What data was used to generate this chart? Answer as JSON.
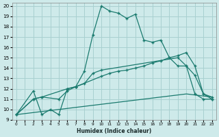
{
  "xlabel": "Humidex (Indice chaleur)",
  "bg_color": "#ceeaea",
  "grid_color": "#a8d0d0",
  "line_color": "#1a7a6e",
  "xlim": [
    -0.5,
    23.5
  ],
  "ylim": [
    9,
    20.3
  ],
  "xticks": [
    0,
    1,
    2,
    3,
    4,
    5,
    6,
    7,
    8,
    9,
    10,
    11,
    12,
    13,
    14,
    15,
    16,
    17,
    18,
    19,
    20,
    21,
    22,
    23
  ],
  "yticks": [
    9,
    10,
    11,
    12,
    13,
    14,
    15,
    16,
    17,
    18,
    19,
    20
  ],
  "series1_x": [
    0,
    2,
    3,
    4,
    5,
    6,
    7,
    8,
    9,
    10,
    11,
    12,
    13,
    14,
    15,
    16,
    17,
    18,
    19,
    20,
    21,
    22,
    23
  ],
  "series1_y": [
    9.5,
    11.8,
    9.5,
    10.0,
    9.5,
    12.0,
    12.2,
    13.7,
    17.2,
    20.0,
    19.5,
    19.3,
    18.8,
    19.2,
    16.7,
    16.5,
    16.7,
    15.0,
    14.2,
    14.2,
    13.3,
    11.5,
    11.0
  ],
  "series2_x": [
    0,
    2,
    3,
    6,
    7,
    8,
    9,
    10,
    19,
    20,
    21,
    22,
    23
  ],
  "series2_y": [
    9.5,
    11.0,
    11.2,
    12.0,
    12.2,
    12.5,
    13.5,
    13.8,
    15.0,
    14.2,
    11.5,
    11.0,
    11.0
  ],
  "series3_x": [
    0,
    2,
    3,
    5,
    6,
    7,
    10,
    11,
    12,
    13,
    14,
    15,
    16,
    17,
    18,
    19,
    20,
    21,
    22,
    23
  ],
  "series3_y": [
    9.5,
    11.0,
    11.2,
    11.0,
    11.8,
    12.2,
    13.2,
    13.5,
    13.7,
    13.8,
    14.0,
    14.2,
    14.5,
    14.7,
    15.0,
    15.2,
    15.5,
    14.2,
    11.5,
    11.2
  ],
  "series4_x": [
    0,
    5,
    10,
    15,
    20,
    23
  ],
  "series4_y": [
    9.5,
    10.0,
    10.5,
    11.0,
    11.5,
    11.2
  ]
}
